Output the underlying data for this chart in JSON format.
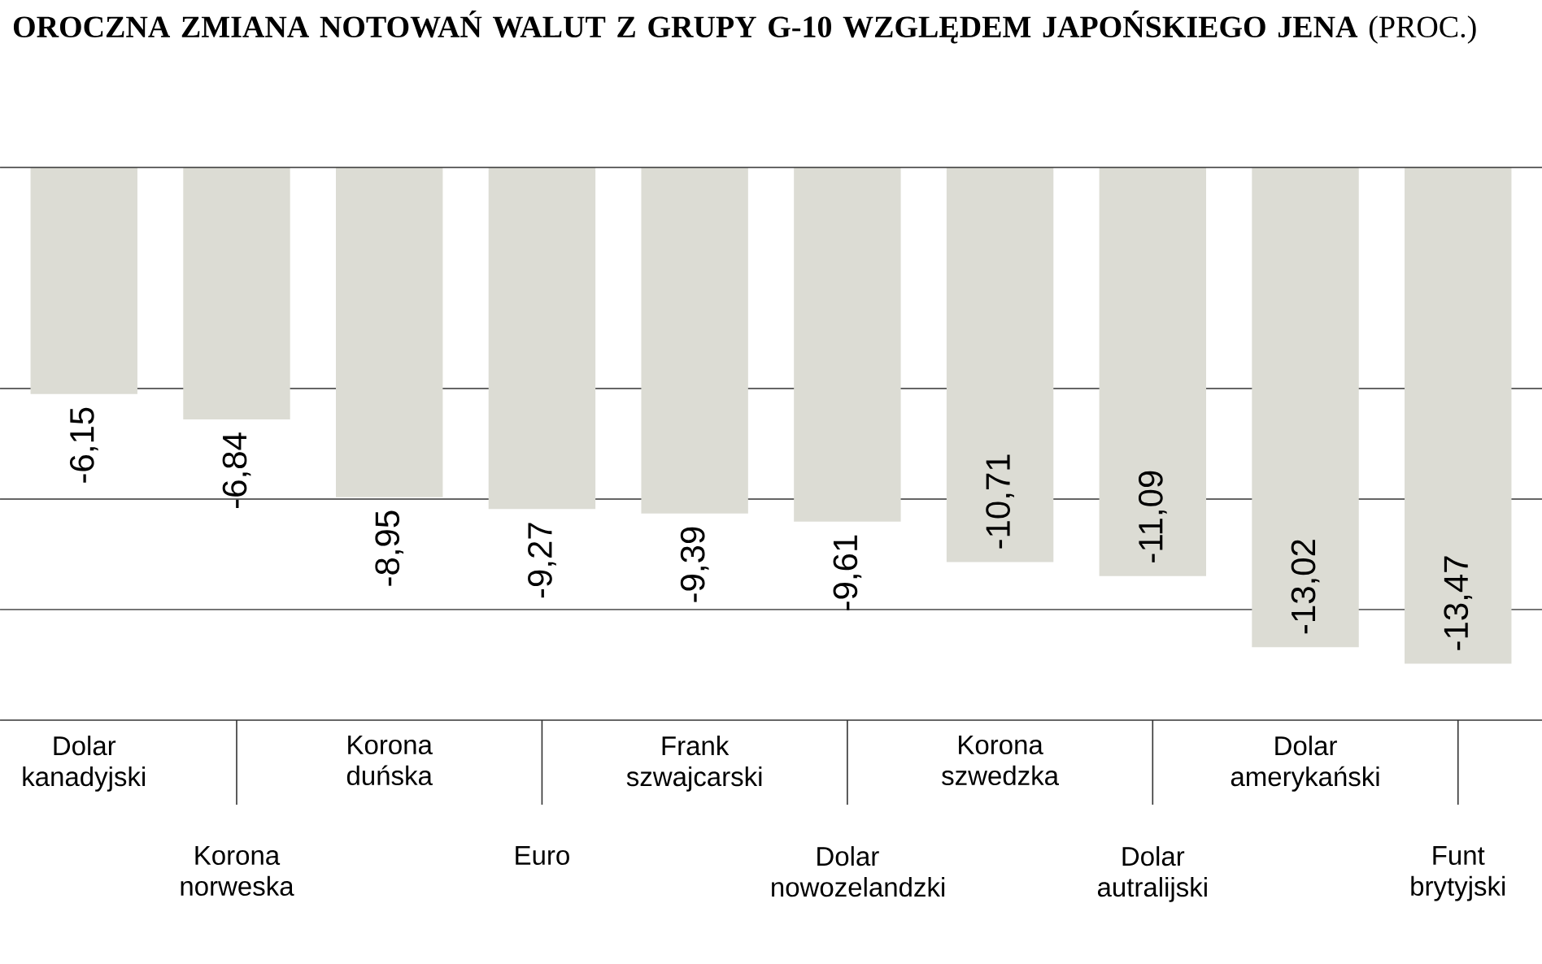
{
  "chart_data": {
    "type": "bar",
    "title": "**OROCZNA ZMIANA NOTOWAŃ WALUT Z GRUPY G-10 WZGLĘDEM JAPOŃSKIEGO JENA** (PROC.)",
    "categories": [
      "Dolar kanadyjski",
      "Korona norweska",
      "Korona duńska",
      "Euro",
      "Frank szwajcarski",
      "Dolar nowozelandzki",
      "Korona szwedzka",
      "Dolar autralijski",
      "Dolar amerykański",
      "Funt brytyjski"
    ],
    "values": [
      -6.15,
      -6.84,
      -8.95,
      -9.27,
      -9.39,
      -9.61,
      -10.71,
      -11.09,
      -13.02,
      -13.47
    ],
    "value_labels": [
      "-6,15",
      "-6,84",
      "-8,95",
      "-9,27",
      "-9,39",
      "-9,61",
      "-10,71",
      "-11,09",
      "-13,02",
      "-13,47"
    ],
    "color": "#dcdcd4",
    "ylim": [
      -15,
      0
    ],
    "yticks": [
      {
        "value": -12,
        "label": null
      },
      {
        "value": -9,
        "label": null
      },
      {
        "value": -6,
        "label": null
      }
    ],
    "grid": "y",
    "tick_labels": "x"
  }
}
